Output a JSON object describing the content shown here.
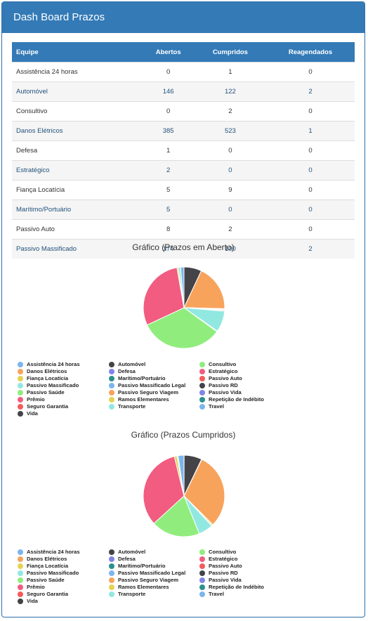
{
  "header": {
    "title": "Dash Board Prazos"
  },
  "table": {
    "columns": [
      "Equipe",
      "Abertos",
      "Cumpridos",
      "Reagendados"
    ],
    "rows": [
      {
        "equipe": "Assistência 24 horas",
        "abertos": "0",
        "cumpridos": "1",
        "reagendados": "0",
        "link": false
      },
      {
        "equipe": "Automóvel",
        "abertos": "146",
        "cumpridos": "122",
        "reagendados": "2",
        "link": true
      },
      {
        "equipe": "Consultivo",
        "abertos": "0",
        "cumpridos": "2",
        "reagendados": "0",
        "link": false
      },
      {
        "equipe": "Danos Elétricos",
        "abertos": "385",
        "cumpridos": "523",
        "reagendados": "1",
        "link": true
      },
      {
        "equipe": "Defesa",
        "abertos": "1",
        "cumpridos": "0",
        "reagendados": "0",
        "link": false
      },
      {
        "equipe": "Estratégico",
        "abertos": "2",
        "cumpridos": "0",
        "reagendados": "0",
        "link": true
      },
      {
        "equipe": "Fiança Locatícia",
        "abertos": "5",
        "cumpridos": "9",
        "reagendados": "0",
        "link": false
      },
      {
        "equipe": "Marítimo/Portuário",
        "abertos": "5",
        "cumpridos": "0",
        "reagendados": "0",
        "link": true
      },
      {
        "equipe": "Passivo Auto",
        "abertos": "8",
        "cumpridos": "2",
        "reagendados": "0",
        "link": false
      },
      {
        "equipe": "Passivo Massificado",
        "abertos": "174",
        "cumpridos": "100",
        "reagendados": "2",
        "link": true
      }
    ]
  },
  "legend_items": [
    {
      "label": "Assistência 24 horas",
      "color": "#7cb5ec"
    },
    {
      "label": "Automóvel",
      "color": "#434348"
    },
    {
      "label": "Consultivo",
      "color": "#90ed7d"
    },
    {
      "label": "Danos Elétricos",
      "color": "#f7a35c"
    },
    {
      "label": "Defesa",
      "color": "#8085e9"
    },
    {
      "label": "Estratégico",
      "color": "#f15c80"
    },
    {
      "label": "Fiança Locatícia",
      "color": "#e4d354"
    },
    {
      "label": "Marítimo/Portuário",
      "color": "#2b908f"
    },
    {
      "label": "Passivo Auto",
      "color": "#f45b5b"
    },
    {
      "label": "Passivo Massificado",
      "color": "#91e8e1"
    },
    {
      "label": "Passivo Massificado Legal",
      "color": "#7cb5ec"
    },
    {
      "label": "Passivo RD",
      "color": "#434348"
    },
    {
      "label": "Passivo Saúde",
      "color": "#90ed7d"
    },
    {
      "label": "Passivo Seguro Viagem",
      "color": "#f7a35c"
    },
    {
      "label": "Passivo Vida",
      "color": "#8085e9"
    },
    {
      "label": "Prêmio",
      "color": "#f15c80"
    },
    {
      "label": "Ramos Elementares",
      "color": "#e4d354"
    },
    {
      "label": "Repetição de Indébito",
      "color": "#2b908f"
    },
    {
      "label": "Seguro Garantia",
      "color": "#f45b5b"
    },
    {
      "label": "Transporte",
      "color": "#91e8e1"
    },
    {
      "label": "Travel",
      "color": "#7cb5ec"
    },
    {
      "label": "Vida",
      "color": "#434348"
    }
  ],
  "chart_data": [
    {
      "type": "pie",
      "title": "Gráfico (Prazos em Aberto)",
      "slices": [
        {
          "name": "Automóvel",
          "value": 146,
          "color": "#434348"
        },
        {
          "name": "Danos Elétricos",
          "value": 385,
          "color": "#f7a35c"
        },
        {
          "name": "Defesa",
          "value": 1,
          "color": "#8085e9"
        },
        {
          "name": "Estratégico",
          "value": 2,
          "color": "#f15c80"
        },
        {
          "name": "Fiança Locatícia",
          "value": 5,
          "color": "#e4d354"
        },
        {
          "name": "Marítimo/Portuário",
          "value": 5,
          "color": "#2b908f"
        },
        {
          "name": "Passivo Auto",
          "value": 8,
          "color": "#f45b5b"
        },
        {
          "name": "Passivo Massificado",
          "value": 174,
          "color": "#91e8e1"
        },
        {
          "name": "Passivo Massificado Legal",
          "value": 6,
          "color": "#7cb5ec"
        },
        {
          "name": "Passivo Saúde",
          "value": 690,
          "color": "#90ed7d"
        },
        {
          "name": "Prêmio",
          "value": 610,
          "color": "#f15c80"
        },
        {
          "name": "Ramos Elementares",
          "value": 12,
          "color": "#e4d354"
        },
        {
          "name": "Transporte",
          "value": 18,
          "color": "#91e8e1"
        },
        {
          "name": "Travel",
          "value": 28,
          "color": "#7cb5ec"
        }
      ]
    },
    {
      "type": "pie",
      "title": "Gráfico (Prazos Cumpridos)",
      "slices": [
        {
          "name": "Assistência 24 horas",
          "value": 1,
          "color": "#7cb5ec"
        },
        {
          "name": "Automóvel",
          "value": 122,
          "color": "#434348"
        },
        {
          "name": "Consultivo",
          "value": 2,
          "color": "#90ed7d"
        },
        {
          "name": "Danos Elétricos",
          "value": 523,
          "color": "#f7a35c"
        },
        {
          "name": "Fiança Locatícia",
          "value": 9,
          "color": "#e4d354"
        },
        {
          "name": "Passivo Auto",
          "value": 2,
          "color": "#f45b5b"
        },
        {
          "name": "Passivo Massificado",
          "value": 100,
          "color": "#91e8e1"
        },
        {
          "name": "Passivo Saúde",
          "value": 335,
          "color": "#90ed7d"
        },
        {
          "name": "Prêmio",
          "value": 570,
          "color": "#f15c80"
        },
        {
          "name": "Ramos Elementares",
          "value": 18,
          "color": "#e4d354"
        },
        {
          "name": "Transporte",
          "value": 8,
          "color": "#91e8e1"
        },
        {
          "name": "Travel",
          "value": 40,
          "color": "#7cb5ec"
        }
      ]
    }
  ]
}
